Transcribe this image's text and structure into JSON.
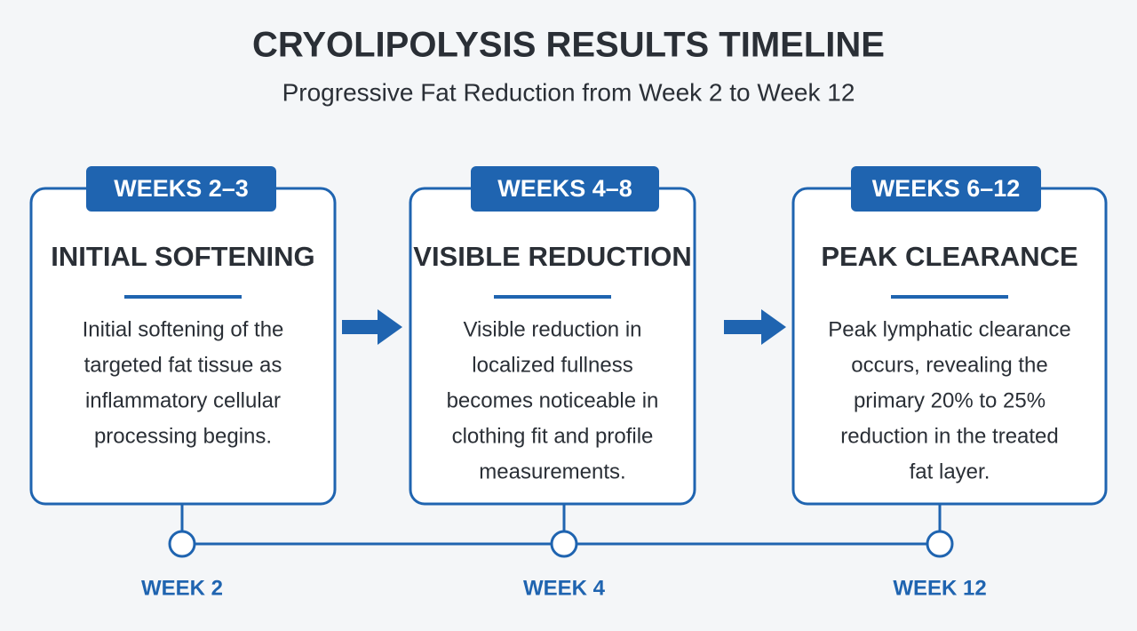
{
  "header": {
    "title": "CRYOLIPOLYSIS RESULTS TIMELINE",
    "subtitle": "Progressive Fat Reduction from Week 2 to Week 12"
  },
  "cards": [
    {
      "badge": "WEEKS 2–3",
      "title": "INITIAL SOFTENING",
      "body": [
        "Initial softening of the",
        "targeted fat tissue as",
        "inflammatory cellular",
        "processing begins."
      ]
    },
    {
      "badge": "WEEKS 4–8",
      "title": "VISIBLE REDUCTION",
      "body": [
        "Visible reduction in",
        "localized fullness",
        "becomes noticeable in",
        "clothing fit and profile",
        "measurements."
      ]
    },
    {
      "badge": "WEEKS 6–12",
      "title": "PEAK CLEARANCE",
      "body": [
        "Peak lymphatic clearance",
        "occurs, revealing the",
        "primary 20% to 25%",
        "reduction in the treated",
        "fat layer."
      ]
    }
  ],
  "timeline": [
    "WEEK 2",
    "WEEK 4",
    "WEEK 12"
  ]
}
